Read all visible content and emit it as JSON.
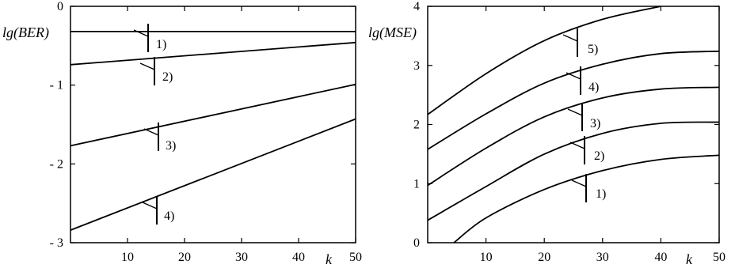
{
  "chart_data": [
    {
      "type": "line",
      "ylabel": "lg(BER)",
      "xlabel": "k",
      "xlim": [
        0,
        50
      ],
      "ylim": [
        -3,
        0
      ],
      "xticks": [
        "10",
        "20",
        "30",
        "40",
        "50"
      ],
      "yticks": [
        "0",
        "- 1",
        "- 2",
        "- 3"
      ],
      "grid": false,
      "series": [
        {
          "name": "1)",
          "x": [
            0,
            50
          ],
          "y": [
            -0.32,
            -0.32
          ]
        },
        {
          "name": "2)",
          "x": [
            0,
            50
          ],
          "y": [
            -0.74,
            -0.46
          ]
        },
        {
          "name": "3)",
          "x": [
            0,
            50
          ],
          "y": [
            -1.77,
            -0.99
          ]
        },
        {
          "name": "4)",
          "x": [
            0,
            50
          ],
          "y": [
            -2.84,
            -1.43
          ]
        }
      ]
    },
    {
      "type": "line",
      "ylabel": "lg(MSE)",
      "xlabel": "k",
      "xlim": [
        0,
        50
      ],
      "ylim": [
        0,
        4
      ],
      "xticks": [
        "10",
        "20",
        "30",
        "40",
        "50"
      ],
      "yticks": [
        "0",
        "1",
        "2",
        "3",
        "4"
      ],
      "grid": false,
      "series": [
        {
          "name": "1)",
          "x": [
            4.5,
            10,
            20,
            30,
            40,
            50
          ],
          "y": [
            0.0,
            0.42,
            0.9,
            1.22,
            1.41,
            1.48
          ]
        },
        {
          "name": "2)",
          "x": [
            0,
            10,
            20,
            30,
            40,
            50
          ],
          "y": [
            0.38,
            0.95,
            1.5,
            1.85,
            2.02,
            2.04
          ]
        },
        {
          "name": "3)",
          "x": [
            0,
            10,
            20,
            30,
            40,
            50
          ],
          "y": [
            0.97,
            1.6,
            2.13,
            2.45,
            2.6,
            2.63
          ]
        },
        {
          "name": "4)",
          "x": [
            0,
            10,
            20,
            30,
            40,
            50
          ],
          "y": [
            1.58,
            2.18,
            2.7,
            3.02,
            3.2,
            3.24
          ]
        },
        {
          "name": "5)",
          "x": [
            0,
            10,
            20,
            30,
            40
          ],
          "y": [
            2.17,
            2.86,
            3.42,
            3.78,
            4.0
          ]
        }
      ]
    }
  ]
}
